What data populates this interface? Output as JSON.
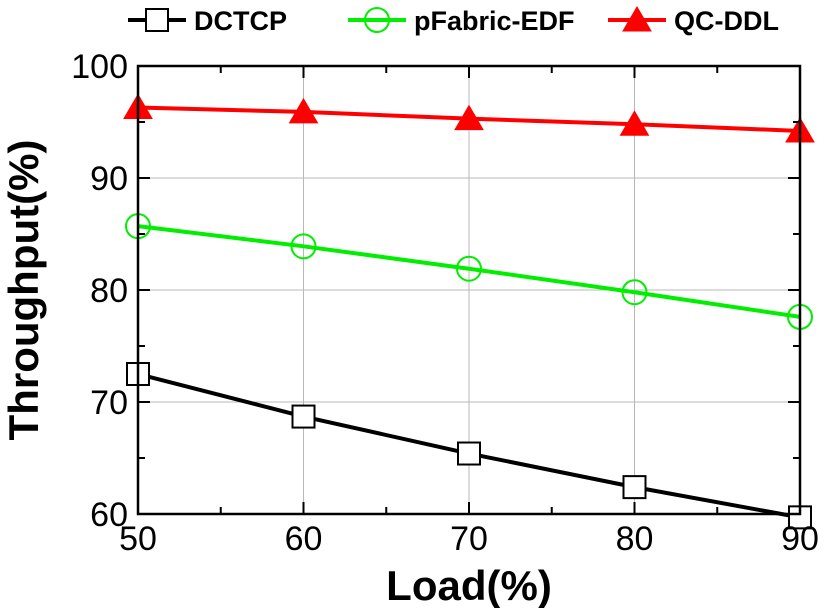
{
  "chart_data": {
    "type": "line",
    "x": [
      50,
      60,
      70,
      80,
      90
    ],
    "xlabel": "Load(%)",
    "ylabel": "Throughput(%)",
    "xlim": [
      50,
      90
    ],
    "ylim": [
      60,
      100
    ],
    "xticks": [
      "50",
      "60",
      "70",
      "80",
      "90"
    ],
    "yticks": [
      "60",
      "70",
      "80",
      "90",
      "100"
    ],
    "grid": true,
    "legend_position": "top",
    "series": [
      {
        "name": "DCTCP",
        "color": "#000000",
        "marker": "square",
        "values": [
          72.5,
          68.7,
          65.4,
          62.4,
          59.7
        ]
      },
      {
        "name": "pFabric-EDF",
        "color": "#00ee00",
        "marker": "circle",
        "values": [
          85.7,
          83.9,
          81.9,
          79.8,
          77.6
        ]
      },
      {
        "name": "QC-DDL",
        "color": "#ff0000",
        "marker": "triangle",
        "values": [
          96.3,
          95.9,
          95.3,
          94.8,
          94.2
        ]
      }
    ]
  }
}
